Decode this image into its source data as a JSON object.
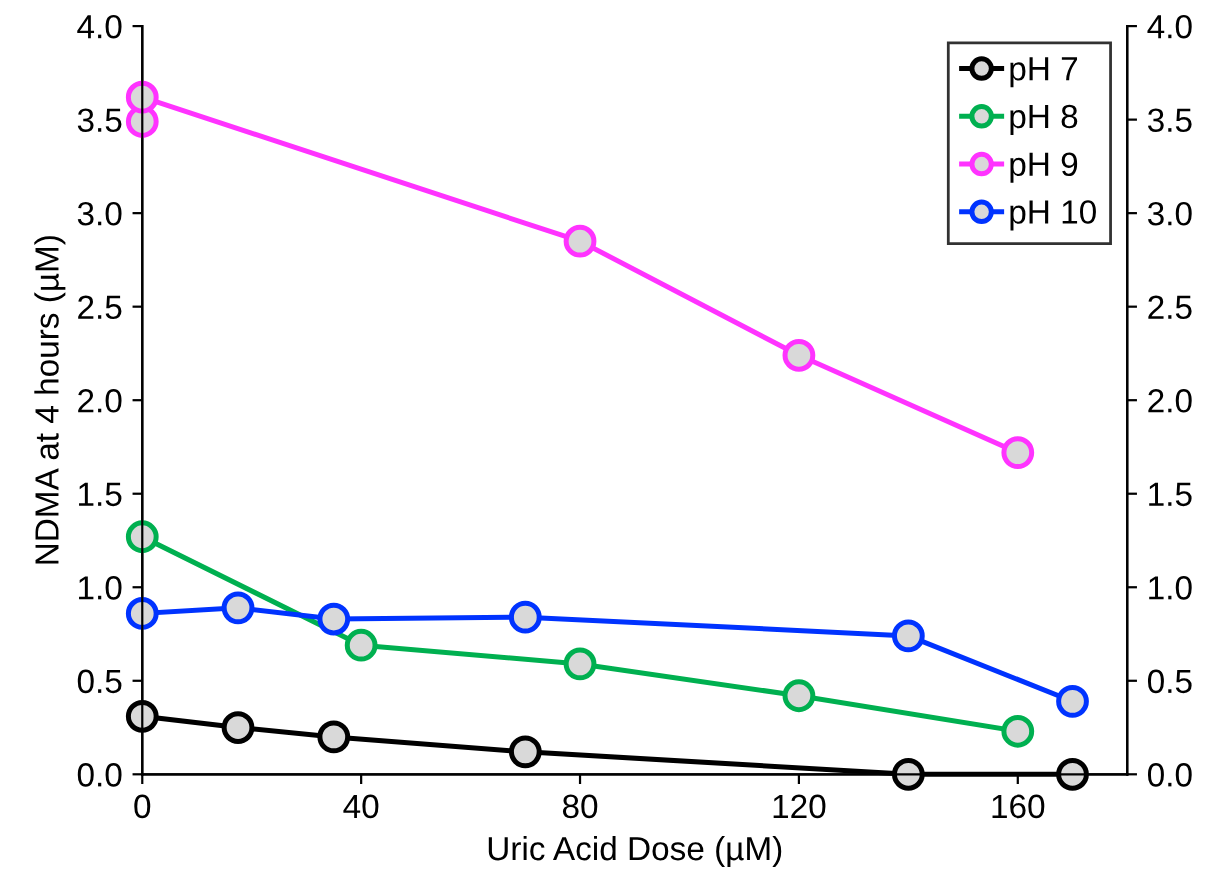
{
  "chart_data": {
    "type": "line",
    "xlabel": "Uric Acid Dose (µM)",
    "ylabel": "NDMA at 4 hours (µM)",
    "xlim": [
      0,
      180
    ],
    "xticks": [
      0,
      40,
      80,
      120,
      160
    ],
    "ylim": [
      0,
      4
    ],
    "yticks": [
      {
        "value": 0,
        "label": "0.0"
      },
      0.5,
      {
        "value": 1,
        "label": "1.0"
      },
      1.5,
      {
        "value": 2,
        "label": "2.0"
      },
      2.5,
      {
        "value": 3,
        "label": "3.0"
      },
      3.5,
      {
        "value": 4,
        "label": "4.0"
      }
    ],
    "y2lim": [
      0,
      4
    ],
    "y2ticks": [
      {
        "value": 0,
        "label": "0.0"
      },
      0.5,
      {
        "value": 1,
        "label": "1.0"
      },
      1.5,
      {
        "value": 2,
        "label": "2.0"
      },
      2.5,
      {
        "value": 3,
        "label": "3.0"
      },
      3.5,
      {
        "value": 4,
        "label": "4.0"
      }
    ],
    "grid": false,
    "legend": "top right",
    "marker": "circle",
    "line_style": "solid",
    "series": [
      {
        "name": "pH 7",
        "color": "#000000",
        "x": [
          0,
          17.5,
          35,
          70,
          140,
          170
        ],
        "values": [
          0.31,
          0.25,
          0.2,
          0.12,
          0.0,
          0.0
        ]
      },
      {
        "name": "pH 8",
        "color": "#00b050",
        "x": [
          0,
          40,
          80,
          120,
          160
        ],
        "values": [
          1.27,
          0.69,
          0.59,
          0.42,
          0.23
        ]
      },
      {
        "name": "pH 9",
        "color": "#ff33ff",
        "x": [
          0,
          0,
          80,
          120,
          160
        ],
        "values": [
          3.49,
          3.62,
          2.85,
          2.24,
          1.72
        ]
      },
      {
        "name": "pH 10",
        "color": "#0033ff",
        "x": [
          0,
          17.5,
          35,
          70,
          140,
          170
        ],
        "values": [
          0.86,
          0.89,
          0.83,
          0.84,
          0.74,
          0.39
        ]
      }
    ]
  }
}
